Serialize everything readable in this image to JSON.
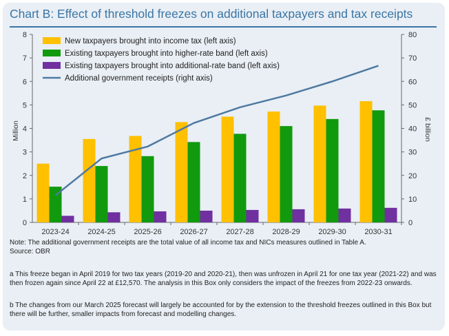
{
  "title": "Chart B: Effect of threshold freezes on additional taxpayers and tax receipts",
  "colors": {
    "title": "#3a75a4",
    "panel": "#e9eff5",
    "new_taxpayers": "#ffc000",
    "higher_rate": "#119a0e",
    "additional_rate": "#7030a0",
    "receipts_line": "#4e79a1"
  },
  "chart_data": {
    "type": "bar",
    "categories": [
      "2023-24",
      "2024-25",
      "2025-26",
      "2026-27",
      "2027-28",
      "2028-29",
      "2029-30",
      "2030-31"
    ],
    "series": [
      {
        "name": "New taxpayers brought into income tax (left axis)",
        "type": "bar",
        "axis": "left",
        "values": [
          2.5,
          3.55,
          3.68,
          4.27,
          4.5,
          4.72,
          4.97,
          5.16
        ]
      },
      {
        "name": "Existing taxpayers brought into higher-rate band (left axis)",
        "type": "bar",
        "axis": "left",
        "values": [
          1.52,
          2.4,
          2.82,
          3.42,
          3.77,
          4.1,
          4.4,
          4.77
        ]
      },
      {
        "name": "Existing taxpayers brought into additional-rate band (left axis)",
        "type": "bar",
        "axis": "left",
        "values": [
          0.28,
          0.43,
          0.47,
          0.5,
          0.53,
          0.56,
          0.59,
          0.62
        ]
      },
      {
        "name": "Additional government receipts (right axis)",
        "type": "line",
        "axis": "right",
        "values": [
          11.5,
          27.2,
          32.3,
          42.3,
          49.0,
          54.0,
          60.0,
          66.7
        ]
      }
    ],
    "ylabel": "Million",
    "y2label": "£ billion",
    "ylim": [
      0,
      8
    ],
    "y2lim": [
      0,
      80
    ],
    "yticks": [
      "0",
      "1",
      "2",
      "3",
      "4",
      "5",
      "6",
      "7",
      "8"
    ],
    "y2ticks": [
      "0",
      "10",
      "20",
      "30",
      "40",
      "50",
      "60",
      "70",
      "80"
    ],
    "grid": false,
    "legend": "top-left"
  },
  "notes": {
    "note": "Note: The additional government receipts are the total value of all income tax and NICs measures outlined in Table A.",
    "source": "Source: OBR",
    "footnote_a": "a This freeze began in April 2019 for two tax years (2019-20 and 2020-21), then was unfrozen in April 21 for one tax year (2021-22) and was then frozen again since April 22 at £12,570. The analysis in this Box only considers the impact of the freezes from 2022-23 onwards.",
    "footnote_b": "b The changes from our March 2025 forecast will largely be accounted for by the extension to the threshold freezes outlined in this Box but there will be further, smaller impacts from forecast and modelling changes."
  }
}
